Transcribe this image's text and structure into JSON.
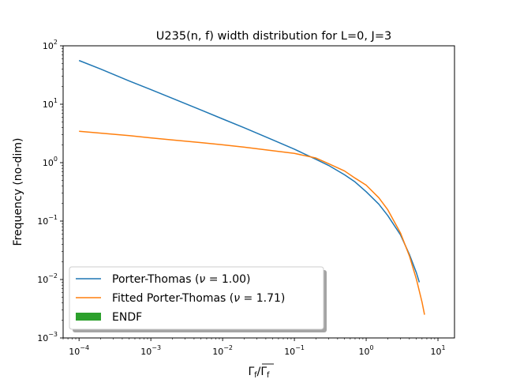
{
  "chart_data": {
    "type": "line",
    "title": "U235(n, f) width distribution for L=0, J=3",
    "xlabel": "Γf/Γf",
    "ylabel": "Frequency (no-dim)",
    "xscale": "log",
    "yscale": "log",
    "xlim": [
      6e-05,
      17
    ],
    "ylim": [
      0.001,
      100
    ],
    "grid": false,
    "legend_position": "lower-left",
    "x_ticks": [
      {
        "base": "10",
        "exp": "−4",
        "value": 0.0001
      },
      {
        "base": "10",
        "exp": "−3",
        "value": 0.001
      },
      {
        "base": "10",
        "exp": "−2",
        "value": 0.01
      },
      {
        "base": "10",
        "exp": "−1",
        "value": 0.1
      },
      {
        "base": "10",
        "exp": "0",
        "value": 1
      },
      {
        "base": "10",
        "exp": "1",
        "value": 10
      }
    ],
    "y_ticks": [
      {
        "base": "10",
        "exp": "−3",
        "value": 0.001
      },
      {
        "base": "10",
        "exp": "−2",
        "value": 0.01
      },
      {
        "base": "10",
        "exp": "−1",
        "value": 0.1
      },
      {
        "base": "10",
        "exp": "0",
        "value": 1
      },
      {
        "base": "10",
        "exp": "1",
        "value": 10
      },
      {
        "base": "10",
        "exp": "2",
        "value": 100
      }
    ],
    "series": [
      {
        "name": "Porter-Thomas (ν = 1.00)",
        "name_prefix": "Porter-Thomas (",
        "name_nu": "1.00",
        "color": "#1f77b4",
        "x": [
          0.0001,
          0.0002,
          0.0005,
          0.001,
          0.002,
          0.005,
          0.01,
          0.02,
          0.05,
          0.1,
          0.2,
          0.3,
          0.5,
          0.7,
          1,
          1.5,
          2,
          3,
          4,
          5,
          5.5
        ],
        "y": [
          56,
          40,
          25,
          17.8,
          12.6,
          7.96,
          5.6,
          3.96,
          2.45,
          1.7,
          1.14,
          0.896,
          0.62,
          0.468,
          0.318,
          0.195,
          0.124,
          0.0584,
          0.0269,
          0.0131,
          0.00897
        ]
      },
      {
        "name": "Fitted Porter-Thomas (ν = 1.71)",
        "name_prefix": "Fitted Porter-Thomas (",
        "name_nu": "1.71",
        "color": "#ff7f0e",
        "x": [
          0.0001,
          0.0002,
          0.0005,
          0.001,
          0.002,
          0.005,
          0.01,
          0.02,
          0.05,
          0.1,
          0.2,
          0.3,
          0.5,
          0.7,
          1,
          1.5,
          2,
          3,
          4,
          5,
          6,
          6.5
        ],
        "y": [
          3.45,
          3.2,
          2.9,
          2.65,
          2.45,
          2.2,
          2.02,
          1.84,
          1.6,
          1.44,
          1.2,
          0.96,
          0.72,
          0.544,
          0.412,
          0.251,
          0.156,
          0.0628,
          0.0254,
          0.0102,
          0.0041,
          0.0025
        ]
      },
      {
        "name": "ENDF",
        "color": "#2ca02c",
        "x": [],
        "y": []
      }
    ]
  }
}
